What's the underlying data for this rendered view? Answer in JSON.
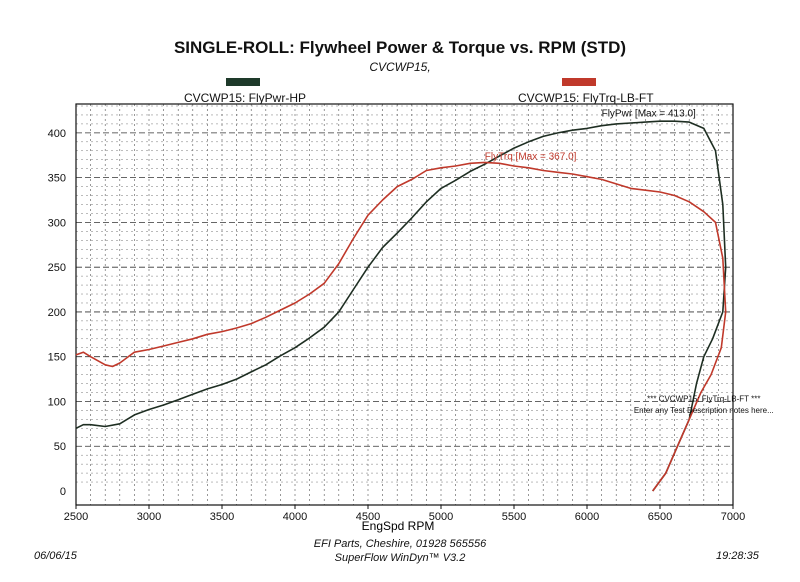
{
  "chart_data": {
    "type": "line",
    "title": "SINGLE-ROLL: Flywheel Power & Torque vs. RPM (STD)",
    "subtitle": "CVCWP15,",
    "xlabel": "EngSpd RPM",
    "ylabel": "",
    "xlim": [
      2500,
      7000
    ],
    "ylim": [
      0,
      430
    ],
    "x_ticks": [
      2500,
      3000,
      3500,
      4000,
      4500,
      5000,
      5500,
      6000,
      6500,
      7000
    ],
    "y_ticks": [
      0,
      50,
      100,
      150,
      200,
      250,
      300,
      350,
      400
    ],
    "grid": true,
    "legend": [
      {
        "label": "CVCWP15: FlyPwr-HP",
        "color": "#1e3a2a"
      },
      {
        "label": "CVCWP15: FlyTrq-LB-FT",
        "color": "#c0392b"
      }
    ],
    "series": [
      {
        "name": "CVCWP15: FlyPwr-HP",
        "color": "#1e2e22",
        "points": [
          [
            2500,
            70
          ],
          [
            2550,
            74
          ],
          [
            2600,
            74
          ],
          [
            2700,
            72
          ],
          [
            2800,
            75
          ],
          [
            2900,
            85
          ],
          [
            3000,
            91
          ],
          [
            3100,
            96
          ],
          [
            3200,
            102
          ],
          [
            3300,
            108
          ],
          [
            3400,
            114
          ],
          [
            3500,
            119
          ],
          [
            3600,
            125
          ],
          [
            3700,
            133
          ],
          [
            3800,
            141
          ],
          [
            3900,
            151
          ],
          [
            4000,
            160
          ],
          [
            4100,
            171
          ],
          [
            4200,
            183
          ],
          [
            4300,
            200
          ],
          [
            4400,
            225
          ],
          [
            4500,
            250
          ],
          [
            4600,
            272
          ],
          [
            4700,
            288
          ],
          [
            4800,
            305
          ],
          [
            4900,
            323
          ],
          [
            5000,
            338
          ],
          [
            5100,
            347
          ],
          [
            5200,
            357
          ],
          [
            5300,
            365
          ],
          [
            5400,
            374
          ],
          [
            5500,
            383
          ],
          [
            5600,
            390
          ],
          [
            5700,
            396
          ],
          [
            5800,
            400
          ],
          [
            5900,
            403
          ],
          [
            6000,
            405
          ],
          [
            6100,
            408
          ],
          [
            6200,
            410
          ],
          [
            6300,
            411
          ],
          [
            6400,
            412
          ],
          [
            6500,
            413
          ],
          [
            6600,
            413
          ],
          [
            6700,
            412
          ],
          [
            6800,
            405
          ],
          [
            6880,
            380
          ],
          [
            6930,
            320
          ],
          [
            6950,
            250
          ],
          [
            6930,
            200
          ],
          [
            6860,
            170
          ],
          [
            6800,
            150
          ],
          [
            6750,
            120
          ],
          [
            6700,
            80
          ],
          [
            6620,
            50
          ],
          [
            6540,
            20
          ],
          [
            6450,
            0
          ]
        ]
      },
      {
        "name": "CVCWP15: FlyTrq-LB-FT",
        "color": "#c0392b",
        "points": [
          [
            2500,
            152
          ],
          [
            2550,
            155
          ],
          [
            2600,
            150
          ],
          [
            2700,
            141
          ],
          [
            2750,
            139
          ],
          [
            2800,
            143
          ],
          [
            2900,
            155
          ],
          [
            3000,
            158
          ],
          [
            3100,
            162
          ],
          [
            3200,
            166
          ],
          [
            3300,
            170
          ],
          [
            3400,
            175
          ],
          [
            3500,
            178
          ],
          [
            3600,
            182
          ],
          [
            3700,
            187
          ],
          [
            3800,
            194
          ],
          [
            3900,
            202
          ],
          [
            4000,
            210
          ],
          [
            4100,
            220
          ],
          [
            4200,
            232
          ],
          [
            4300,
            254
          ],
          [
            4400,
            282
          ],
          [
            4500,
            308
          ],
          [
            4600,
            325
          ],
          [
            4700,
            340
          ],
          [
            4800,
            348
          ],
          [
            4900,
            358
          ],
          [
            5000,
            361
          ],
          [
            5100,
            363
          ],
          [
            5200,
            366
          ],
          [
            5300,
            367
          ],
          [
            5400,
            366
          ],
          [
            5500,
            363
          ],
          [
            5600,
            361
          ],
          [
            5700,
            358
          ],
          [
            5800,
            356
          ],
          [
            5900,
            354
          ],
          [
            6000,
            351
          ],
          [
            6100,
            348
          ],
          [
            6200,
            343
          ],
          [
            6300,
            338
          ],
          [
            6400,
            336
          ],
          [
            6500,
            334
          ],
          [
            6600,
            330
          ],
          [
            6700,
            323
          ],
          [
            6800,
            312
          ],
          [
            6880,
            300
          ],
          [
            6930,
            260
          ],
          [
            6950,
            200
          ],
          [
            6920,
            160
          ],
          [
            6850,
            130
          ],
          [
            6780,
            110
          ],
          [
            6700,
            80
          ],
          [
            6620,
            50
          ],
          [
            6540,
            20
          ],
          [
            6450,
            0
          ]
        ]
      }
    ],
    "annotations": [
      {
        "text": "FlyPwr [Max = 413.0]",
        "x": 6100,
        "y": 418,
        "color": "#111111"
      },
      {
        "text": "FlyTrq [Max = 367.0]",
        "x": 5300,
        "y": 370,
        "color": "#c0392b"
      },
      {
        "text": "*** CVCWP15: FlyTrq-LB-FT ***",
        "x": 6800,
        "y": 100,
        "color": "#111111"
      },
      {
        "text": "Enter any Test Description notes here...",
        "x": 6800,
        "y": 87,
        "color": "#111111"
      }
    ]
  },
  "footer": {
    "date": "06/06/15",
    "company": "EFI Parts, Cheshire, 01928 565556",
    "software": "SuperFlow WinDyn™ V3.2",
    "time": "19:28:35"
  }
}
